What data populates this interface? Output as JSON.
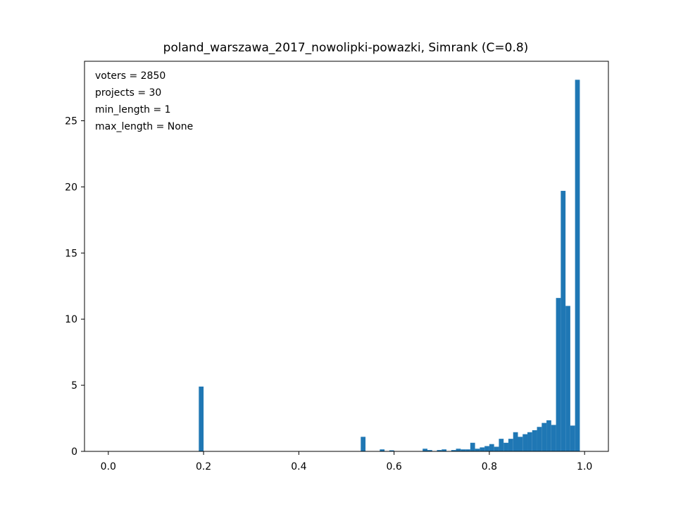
{
  "chart_data": {
    "type": "bar",
    "title": "poland_warszawa_2017_nowolipki-powazki, Simrank (C=0.8)",
    "xlabel": "",
    "ylabel": "",
    "xlim": [
      -0.05,
      1.05
    ],
    "ylim": [
      0,
      29.5
    ],
    "xticks": [
      0.0,
      0.2,
      0.4,
      0.6,
      0.8,
      1.0
    ],
    "xtick_labels": [
      "0.0",
      "0.2",
      "0.4",
      "0.6",
      "0.8",
      "1.0"
    ],
    "yticks": [
      0,
      5,
      10,
      15,
      20,
      25
    ],
    "ytick_labels": [
      "0",
      "5",
      "10",
      "15",
      "20",
      "25"
    ],
    "grid": false,
    "annotation": [
      "voters = 2850",
      "projects = 30",
      "min_length = 1",
      "max_length = None"
    ],
    "bar_color": "#1f77b4",
    "bin_width": 0.01,
    "bins": [
      {
        "x": 0.19,
        "value": 4.9
      },
      {
        "x": 0.53,
        "value": 1.1
      },
      {
        "x": 0.57,
        "value": 0.15
      },
      {
        "x": 0.59,
        "value": 0.08
      },
      {
        "x": 0.66,
        "value": 0.2
      },
      {
        "x": 0.67,
        "value": 0.1
      },
      {
        "x": 0.69,
        "value": 0.1
      },
      {
        "x": 0.7,
        "value": 0.15
      },
      {
        "x": 0.72,
        "value": 0.1
      },
      {
        "x": 0.73,
        "value": 0.2
      },
      {
        "x": 0.74,
        "value": 0.15
      },
      {
        "x": 0.75,
        "value": 0.15
      },
      {
        "x": 0.76,
        "value": 0.65
      },
      {
        "x": 0.77,
        "value": 0.2
      },
      {
        "x": 0.78,
        "value": 0.3
      },
      {
        "x": 0.79,
        "value": 0.4
      },
      {
        "x": 0.8,
        "value": 0.55
      },
      {
        "x": 0.81,
        "value": 0.35
      },
      {
        "x": 0.82,
        "value": 0.95
      },
      {
        "x": 0.83,
        "value": 0.65
      },
      {
        "x": 0.84,
        "value": 0.95
      },
      {
        "x": 0.85,
        "value": 1.45
      },
      {
        "x": 0.86,
        "value": 1.1
      },
      {
        "x": 0.87,
        "value": 1.3
      },
      {
        "x": 0.88,
        "value": 1.45
      },
      {
        "x": 0.89,
        "value": 1.6
      },
      {
        "x": 0.9,
        "value": 1.85
      },
      {
        "x": 0.91,
        "value": 2.15
      },
      {
        "x": 0.92,
        "value": 2.35
      },
      {
        "x": 0.93,
        "value": 2.0
      },
      {
        "x": 0.94,
        "value": 11.6
      },
      {
        "x": 0.95,
        "value": 19.7
      },
      {
        "x": 0.96,
        "value": 11.0
      },
      {
        "x": 0.97,
        "value": 1.95
      },
      {
        "x": 0.98,
        "value": 28.1
      }
    ]
  }
}
